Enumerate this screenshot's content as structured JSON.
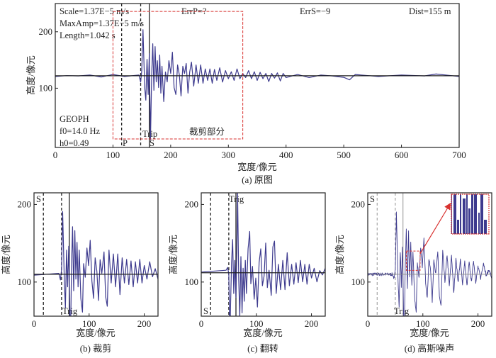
{
  "colors": {
    "trace": "#3d3a8e",
    "crop_box": "#d8312f",
    "marker": "#222222",
    "noise_marker": "#888888"
  },
  "chart_data": [
    {
      "id": "a",
      "type": "line",
      "caption": "(a) 原图",
      "xlabel": "宽度/像元",
      "ylabel": "高度/像元",
      "xlim": [
        0,
        700
      ],
      "ylim": [
        -5,
        250
      ],
      "xticks": [
        0,
        100,
        200,
        300,
        400,
        500,
        600,
        700
      ],
      "yticks": [
        100,
        200
      ],
      "grid": false,
      "annotations": {
        "scale": "Scale=1.37E−5 m/s",
        "maxamp": "MaxAmp=1.37E−5 m/s",
        "length": "Length=1.042 s",
        "errp": "ErrP=?",
        "errs": "ErrS=−9",
        "dist": "Dist=155 m",
        "geoph": "GEOPH",
        "f0": "f0=14.0 Hz",
        "h0": "h0=0.49",
        "p_label": "P",
        "s_label": "S",
        "trip_label": "Trip",
        "crop_label": "裁剪部分"
      },
      "markers": {
        "p_dashed": 115,
        "second_dashed": 148,
        "s_solid": 163,
        "baseline": 122
      },
      "crop_region": {
        "x": [
          100,
          325
        ],
        "y": [
          10,
          236
        ]
      },
      "points": [
        [
          0,
          122
        ],
        [
          20,
          121
        ],
        [
          40,
          123
        ],
        [
          60,
          122
        ],
        [
          80,
          121
        ],
        [
          100,
          123
        ],
        [
          120,
          122
        ],
        [
          145,
          122
        ],
        [
          148,
          112
        ],
        [
          150,
          130
        ],
        [
          152,
          205
        ],
        [
          155,
          100
        ],
        [
          157,
          80
        ],
        [
          159,
          150
        ],
        [
          161,
          90
        ],
        [
          163,
          160
        ],
        [
          165,
          10
        ],
        [
          167,
          120
        ],
        [
          169,
          180
        ],
        [
          171,
          95
        ],
        [
          173,
          175
        ],
        [
          175,
          110
        ],
        [
          177,
          150
        ],
        [
          179,
          100
        ],
        [
          181,
          160
        ],
        [
          183,
          90
        ],
        [
          185,
          140
        ],
        [
          188,
          75
        ],
        [
          191,
          130
        ],
        [
          194,
          110
        ],
        [
          197,
          150
        ],
        [
          200,
          125
        ],
        [
          203,
          165
        ],
        [
          206,
          100
        ],
        [
          209,
          90
        ],
        [
          212,
          140
        ],
        [
          215,
          125
        ],
        [
          218,
          85
        ],
        [
          221,
          140
        ],
        [
          224,
          125
        ],
        [
          227,
          145
        ],
        [
          230,
          90
        ],
        [
          233,
          130
        ],
        [
          236,
          145
        ],
        [
          240,
          105
        ],
        [
          244,
          140
        ],
        [
          248,
          110
        ],
        [
          252,
          140
        ],
        [
          256,
          110
        ],
        [
          260,
          133
        ],
        [
          264,
          115
        ],
        [
          268,
          133
        ],
        [
          272,
          110
        ],
        [
          276,
          132
        ],
        [
          280,
          115
        ],
        [
          285,
          135
        ],
        [
          290,
          112
        ],
        [
          295,
          130
        ],
        [
          300,
          118
        ],
        [
          305,
          128
        ],
        [
          310,
          115
        ],
        [
          315,
          133
        ],
        [
          320,
          118
        ],
        [
          325,
          125
        ],
        [
          330,
          120
        ],
        [
          335,
          130
        ],
        [
          340,
          118
        ],
        [
          345,
          128
        ],
        [
          350,
          115
        ],
        [
          355,
          127
        ],
        [
          360,
          118
        ],
        [
          365,
          125
        ],
        [
          370,
          113
        ],
        [
          375,
          125
        ],
        [
          380,
          119
        ],
        [
          385,
          126
        ],
        [
          390,
          114
        ],
        [
          395,
          125
        ],
        [
          400,
          120
        ],
        [
          420,
          123
        ],
        [
          440,
          120
        ],
        [
          460,
          122
        ],
        [
          480,
          123
        ],
        [
          500,
          118
        ],
        [
          510,
          116
        ],
        [
          520,
          123
        ],
        [
          560,
          122
        ],
        [
          600,
          122
        ],
        [
          640,
          123
        ],
        [
          660,
          124
        ],
        [
          700,
          122
        ]
      ]
    },
    {
      "id": "b",
      "type": "line",
      "caption": "(b) 裁剪",
      "xlabel": "宽度/像元",
      "ylabel": "高度/像元",
      "xlim": [
        0,
        225
      ],
      "ylim": [
        56,
        215
      ],
      "xticks": [
        0,
        100,
        200
      ],
      "yticks": [
        100,
        200
      ],
      "grid": false,
      "labels": {
        "s_label": "S",
        "trig_label": "Trig"
      },
      "markers": {
        "s_dashed": 17,
        "second_dashed": 50,
        "trig_solid": 64,
        "baseline": 110
      },
      "points": [
        [
          0,
          110
        ],
        [
          45,
          110
        ],
        [
          48,
          104
        ],
        [
          50,
          115
        ],
        [
          52,
          192
        ],
        [
          55,
          100
        ],
        [
          57,
          68
        ],
        [
          59,
          140
        ],
        [
          61,
          95
        ],
        [
          63,
          145
        ],
        [
          65,
          60
        ],
        [
          66,
          10
        ],
        [
          68,
          120
        ],
        [
          70,
          170
        ],
        [
          72,
          90
        ],
        [
          74,
          165
        ],
        [
          76,
          105
        ],
        [
          78,
          150
        ],
        [
          80,
          95
        ],
        [
          82,
          140
        ],
        [
          85,
          80
        ],
        [
          88,
          60
        ],
        [
          90,
          125
        ],
        [
          93,
          105
        ],
        [
          96,
          145
        ],
        [
          99,
          120
        ],
        [
          102,
          155
        ],
        [
          105,
          100
        ],
        [
          108,
          80
        ],
        [
          111,
          130
        ],
        [
          114,
          115
        ],
        [
          117,
          75
        ],
        [
          120,
          130
        ],
        [
          123,
          110
        ],
        [
          127,
          140
        ],
        [
          130,
          80
        ],
        [
          133,
          70
        ],
        [
          136,
          140
        ],
        [
          140,
          100
        ],
        [
          144,
          135
        ],
        [
          148,
          95
        ],
        [
          152,
          135
        ],
        [
          156,
          85
        ],
        [
          160,
          130
        ],
        [
          164,
          100
        ],
        [
          168,
          128
        ],
        [
          172,
          98
        ],
        [
          176,
          126
        ],
        [
          180,
          95
        ],
        [
          184,
          125
        ],
        [
          188,
          100
        ],
        [
          192,
          128
        ],
        [
          196,
          100
        ],
        [
          200,
          120
        ],
        [
          205,
          105
        ],
        [
          210,
          125
        ],
        [
          215,
          108
        ],
        [
          220,
          116
        ],
        [
          225,
          105
        ]
      ]
    },
    {
      "id": "c",
      "type": "line",
      "caption": "(c) 翻转",
      "xlabel": "宽度/像元",
      "ylabel": "高度/像元",
      "xlim": [
        0,
        225
      ],
      "ylim": [
        56,
        215
      ],
      "xticks": [
        0,
        100,
        200
      ],
      "yticks": [
        100,
        200
      ],
      "grid": false,
      "labels": {
        "s_label": "S",
        "trig_label": "Trig"
      },
      "markers": {
        "s_dashed": 17,
        "second_dashed": 50,
        "trig_solid": 63,
        "baseline": 112
      },
      "points": [
        [
          0,
          114
        ],
        [
          45,
          114
        ],
        [
          48,
          120
        ],
        [
          50,
          109
        ],
        [
          52,
          32
        ],
        [
          55,
          124
        ],
        [
          57,
          156
        ],
        [
          59,
          84
        ],
        [
          61,
          129
        ],
        [
          63,
          79
        ],
        [
          65,
          164
        ],
        [
          66,
          214
        ],
        [
          68,
          104
        ],
        [
          70,
          54
        ],
        [
          72,
          134
        ],
        [
          74,
          59
        ],
        [
          76,
          119
        ],
        [
          78,
          74
        ],
        [
          80,
          129
        ],
        [
          82,
          84
        ],
        [
          85,
          144
        ],
        [
          88,
          164
        ],
        [
          90,
          99
        ],
        [
          93,
          119
        ],
        [
          96,
          79
        ],
        [
          99,
          104
        ],
        [
          102,
          69
        ],
        [
          105,
          124
        ],
        [
          108,
          144
        ],
        [
          111,
          94
        ],
        [
          114,
          109
        ],
        [
          117,
          149
        ],
        [
          120,
          94
        ],
        [
          123,
          114
        ],
        [
          127,
          84
        ],
        [
          130,
          144
        ],
        [
          133,
          154
        ],
        [
          136,
          84
        ],
        [
          140,
          124
        ],
        [
          144,
          89
        ],
        [
          148,
          129
        ],
        [
          152,
          89
        ],
        [
          156,
          139
        ],
        [
          160,
          94
        ],
        [
          164,
          124
        ],
        [
          168,
          96
        ],
        [
          172,
          126
        ],
        [
          176,
          98
        ],
        [
          180,
          129
        ],
        [
          184,
          99
        ],
        [
          188,
          124
        ],
        [
          192,
          96
        ],
        [
          196,
          124
        ],
        [
          200,
          104
        ],
        [
          205,
          119
        ],
        [
          210,
          99
        ],
        [
          215,
          116
        ],
        [
          220,
          108
        ],
        [
          225,
          119
        ]
      ]
    },
    {
      "id": "d",
      "type": "line",
      "caption": "(d) 高斯噪声",
      "xlabel": "宽度/像元",
      "ylabel": "高度/像元",
      "xlim": [
        0,
        225
      ],
      "ylim": [
        56,
        215
      ],
      "xticks": [
        0,
        100,
        200
      ],
      "yticks": [
        100,
        200
      ],
      "grid": false,
      "labels": {
        "s_label": "S",
        "trig_label": "Trig"
      },
      "markers": {
        "s_dashed": 17,
        "second_dashed": 50,
        "trig_solid": 64,
        "baseline": 110
      },
      "zoom_region": {
        "x": [
          70,
          95
        ],
        "y": [
          115,
          140
        ]
      },
      "points": [
        [
          0,
          110
        ],
        [
          45,
          110
        ],
        [
          48,
          104
        ],
        [
          50,
          115
        ],
        [
          52,
          192
        ],
        [
          55,
          100
        ],
        [
          57,
          68
        ],
        [
          59,
          140
        ],
        [
          61,
          95
        ],
        [
          63,
          145
        ],
        [
          65,
          60
        ],
        [
          66,
          10
        ],
        [
          68,
          120
        ],
        [
          70,
          170
        ],
        [
          72,
          90
        ],
        [
          74,
          165
        ],
        [
          76,
          105
        ],
        [
          78,
          150
        ],
        [
          80,
          95
        ],
        [
          82,
          140
        ],
        [
          85,
          80
        ],
        [
          88,
          60
        ],
        [
          90,
          125
        ],
        [
          93,
          105
        ],
        [
          96,
          145
        ],
        [
          99,
          120
        ],
        [
          102,
          155
        ],
        [
          105,
          100
        ],
        [
          108,
          80
        ],
        [
          111,
          130
        ],
        [
          114,
          115
        ],
        [
          117,
          75
        ],
        [
          120,
          130
        ],
        [
          123,
          110
        ],
        [
          127,
          140
        ],
        [
          130,
          80
        ],
        [
          133,
          70
        ],
        [
          136,
          140
        ],
        [
          140,
          100
        ],
        [
          144,
          135
        ],
        [
          148,
          95
        ],
        [
          152,
          135
        ],
        [
          156,
          85
        ],
        [
          160,
          130
        ],
        [
          164,
          100
        ],
        [
          168,
          128
        ],
        [
          172,
          98
        ],
        [
          176,
          126
        ],
        [
          180,
          95
        ],
        [
          184,
          125
        ],
        [
          188,
          100
        ],
        [
          192,
          128
        ],
        [
          196,
          100
        ],
        [
          200,
          120
        ],
        [
          205,
          105
        ],
        [
          210,
          125
        ],
        [
          215,
          108
        ],
        [
          220,
          116
        ],
        [
          225,
          105
        ]
      ]
    }
  ]
}
